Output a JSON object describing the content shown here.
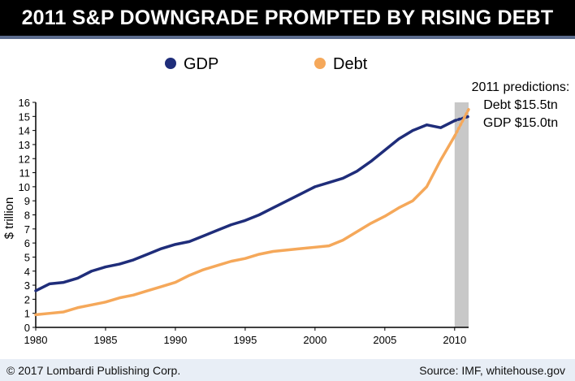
{
  "chart_data": {
    "type": "line",
    "title": "2011 S&P DOWNGRADE PROMPTED BY RISING DEBT",
    "ylabel": "$ trillion",
    "xlabel": "",
    "xlim": [
      1980,
      2011
    ],
    "ylim": [
      0,
      16
    ],
    "x_ticks": [
      "1980",
      "1985",
      "1990",
      "1995",
      "2000",
      "2005",
      "2010"
    ],
    "y_ticks": [
      "0",
      "1",
      "2",
      "3",
      "4",
      "5",
      "6",
      "7",
      "8",
      "9",
      "10",
      "11",
      "12",
      "13",
      "14",
      "15",
      "16"
    ],
    "legend_placement": "top",
    "grid": false,
    "prediction_region": [
      2010,
      2011
    ],
    "annotation": [
      "2011 predictions:",
      "Debt $15.5tn",
      "GDP $15.0tn"
    ],
    "series": [
      {
        "name": "GDP",
        "color": "#1f2d7a",
        "x": [
          1980,
          1981,
          1982,
          1983,
          1984,
          1985,
          1986,
          1987,
          1988,
          1989,
          1990,
          1991,
          1992,
          1993,
          1994,
          1995,
          1996,
          1997,
          1998,
          1999,
          2000,
          2001,
          2002,
          2003,
          2004,
          2005,
          2006,
          2007,
          2008,
          2009,
          2010
        ],
        "values": [
          2.6,
          3.1,
          3.2,
          3.5,
          4.0,
          4.3,
          4.5,
          4.8,
          5.2,
          5.6,
          5.9,
          6.1,
          6.5,
          6.9,
          7.3,
          7.6,
          8.0,
          8.5,
          9.0,
          9.5,
          10.0,
          10.3,
          10.6,
          11.1,
          11.8,
          12.6,
          13.4,
          14.0,
          14.4,
          14.2,
          14.7
        ],
        "projection": {
          "x": [
            2010,
            2011
          ],
          "values": [
            14.7,
            15.0
          ]
        }
      },
      {
        "name": "Debt",
        "color": "#f5a85a",
        "x": [
          1980,
          1981,
          1982,
          1983,
          1984,
          1985,
          1986,
          1987,
          1988,
          1989,
          1990,
          1991,
          1992,
          1993,
          1994,
          1995,
          1996,
          1997,
          1998,
          1999,
          2000,
          2001,
          2002,
          2003,
          2004,
          2005,
          2006,
          2007,
          2008,
          2009,
          2010
        ],
        "values": [
          0.9,
          1.0,
          1.1,
          1.4,
          1.6,
          1.8,
          2.1,
          2.3,
          2.6,
          2.9,
          3.2,
          3.7,
          4.1,
          4.4,
          4.7,
          4.9,
          5.2,
          5.4,
          5.5,
          5.6,
          5.7,
          5.8,
          6.2,
          6.8,
          7.4,
          7.9,
          8.5,
          9.0,
          10.0,
          11.9,
          13.6
        ],
        "projection": {
          "x": [
            2010,
            2011
          ],
          "values": [
            13.6,
            15.5
          ]
        }
      }
    ]
  },
  "footer": {
    "copyright": "© 2017 Lombardi Publishing Corp.",
    "source": "Source: IMF, whitehouse.gov"
  }
}
